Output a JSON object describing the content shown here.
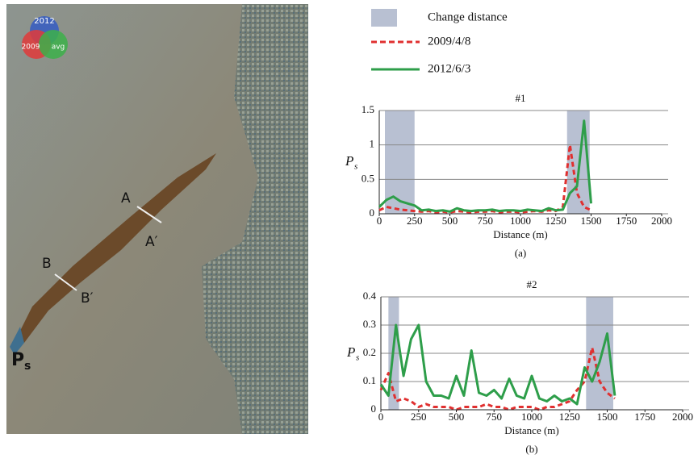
{
  "image": {
    "logo": [
      "2012",
      "2009",
      "avg"
    ],
    "labels": [
      "A",
      "A′",
      "B",
      "B′",
      "P",
      "s"
    ]
  },
  "chart_data": [
    {
      "type": "line",
      "title": "#1",
      "x_label": "Distance (m)",
      "y_label": "P",
      "y_label_sub": "s",
      "caption": "(a)",
      "band_label": "Change distance",
      "band_color": "#b8c0d2",
      "bands": [
        [
          40,
          250
        ],
        [
          1330,
          1490
        ]
      ],
      "xlim": [
        0,
        2000
      ],
      "xticks": [
        0,
        250,
        500,
        750,
        1000,
        1250,
        1500,
        1750,
        2000
      ],
      "ylim": [
        0,
        1.5
      ],
      "yticks": [
        0,
        0.5,
        1,
        1.5
      ],
      "grid": true,
      "x": [
        0,
        50,
        100,
        150,
        200,
        250,
        300,
        350,
        400,
        450,
        500,
        550,
        600,
        650,
        700,
        750,
        800,
        850,
        900,
        950,
        1000,
        1050,
        1100,
        1150,
        1200,
        1250,
        1300,
        1350,
        1400,
        1450,
        1500
      ],
      "series": [
        {
          "name": "2009/4/8",
          "color": "#e03030",
          "dashed": true,
          "values": [
            0.05,
            0.1,
            0.08,
            0.06,
            0.05,
            0.04,
            0.03,
            0.04,
            0.02,
            0.03,
            0.02,
            0.04,
            0.03,
            0.02,
            0.03,
            0.03,
            0.04,
            0.02,
            0.03,
            0.03,
            0.02,
            0.03,
            0.04,
            0.03,
            0.05,
            0.04,
            0.1,
            1.0,
            0.3,
            0.1,
            0.05
          ]
        },
        {
          "name": "2012/6/3",
          "color": "#2e9e4a",
          "dashed": false,
          "values": [
            0.1,
            0.2,
            0.25,
            0.18,
            0.15,
            0.12,
            0.05,
            0.06,
            0.04,
            0.05,
            0.03,
            0.08,
            0.05,
            0.04,
            0.05,
            0.05,
            0.06,
            0.04,
            0.05,
            0.05,
            0.04,
            0.06,
            0.05,
            0.04,
            0.08,
            0.05,
            0.06,
            0.3,
            0.4,
            1.35,
            0.15
          ]
        }
      ]
    },
    {
      "type": "line",
      "title": "#2",
      "x_label": "Distance (m)",
      "y_label": "P",
      "y_label_sub": "s",
      "caption": "(b)",
      "band_color": "#b8c0d2",
      "bands": [
        [
          50,
          120
        ],
        [
          1360,
          1540
        ]
      ],
      "xlim": [
        0,
        2000
      ],
      "xticks": [
        0,
        250,
        500,
        750,
        1000,
        1250,
        1500,
        1750,
        2000
      ],
      "ylim": [
        0,
        0.4
      ],
      "yticks": [
        0,
        0.1,
        0.2,
        0.3,
        0.4
      ],
      "grid": true,
      "x": [
        0,
        50,
        100,
        150,
        200,
        250,
        300,
        350,
        400,
        450,
        500,
        550,
        600,
        650,
        700,
        750,
        800,
        850,
        900,
        950,
        1000,
        1050,
        1100,
        1150,
        1200,
        1250,
        1300,
        1350,
        1400,
        1450,
        1500,
        1550
      ],
      "series": [
        {
          "name": "2009/4/8",
          "color": "#e03030",
          "dashed": true,
          "values": [
            0.07,
            0.13,
            0.03,
            0.04,
            0.03,
            0.01,
            0.02,
            0.01,
            0.01,
            0.01,
            0,
            0.01,
            0.01,
            0.01,
            0.02,
            0.01,
            0.01,
            0,
            0.01,
            0.01,
            0.01,
            0,
            0.01,
            0.01,
            0.02,
            0.03,
            0.07,
            0.1,
            0.22,
            0.1,
            0.06,
            0.04
          ]
        },
        {
          "name": "2012/6/3",
          "color": "#2e9e4a",
          "dashed": false,
          "values": [
            0.09,
            0.05,
            0.3,
            0.12,
            0.25,
            0.3,
            0.1,
            0.05,
            0.05,
            0.04,
            0.12,
            0.05,
            0.21,
            0.06,
            0.05,
            0.07,
            0.04,
            0.11,
            0.05,
            0.04,
            0.12,
            0.04,
            0.03,
            0.05,
            0.03,
            0.04,
            0.02,
            0.15,
            0.1,
            0.17,
            0.27,
            0.05
          ]
        }
      ]
    }
  ]
}
